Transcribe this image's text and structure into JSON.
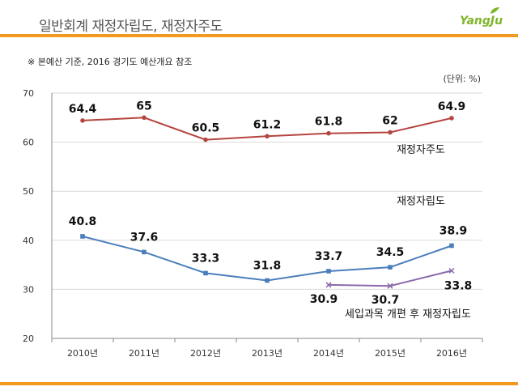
{
  "header": {
    "title": "일반회계 재정자립도, 재정자주도",
    "logo_text": "YangJu"
  },
  "note": "※ 본예산 기준, 2016 경기도 예산개요 참조",
  "colors": {
    "accent_rule": "#f39a1e",
    "series_autonomy": "#b5453f",
    "series_independence": "#4a7ebb",
    "series_reform": "#8b6aa8",
    "grid": "#d9d9d9"
  },
  "chart_data": {
    "type": "line",
    "unit_label": "(단위: %)",
    "categories": [
      "2010년",
      "2011년",
      "2012년",
      "2013년",
      "2014년",
      "2015년",
      "2016년"
    ],
    "ylim": [
      20,
      70
    ],
    "yticks": [
      20,
      30,
      40,
      50,
      60,
      70
    ],
    "grid": true,
    "series": [
      {
        "name": "재정자주도",
        "values": [
          64.4,
          65,
          60.5,
          61.2,
          61.8,
          62,
          64.9
        ],
        "labels": [
          "64.4",
          "65",
          "60.5",
          "61.2",
          "61.8",
          "62",
          "64.9"
        ]
      },
      {
        "name": "재정자립도",
        "values": [
          40.8,
          37.6,
          33.3,
          31.8,
          33.7,
          34.5,
          38.9
        ],
        "labels": [
          "40.8",
          "37.6",
          "33.3",
          "31.8",
          "33.7",
          "34.5",
          "38.9"
        ]
      },
      {
        "name": "세입과목 개편 후 재정자립도",
        "values": [
          null,
          null,
          null,
          null,
          30.9,
          30.7,
          33.8
        ],
        "labels": [
          null,
          null,
          null,
          null,
          "30.9",
          "30.7",
          "33.8"
        ]
      }
    ]
  }
}
